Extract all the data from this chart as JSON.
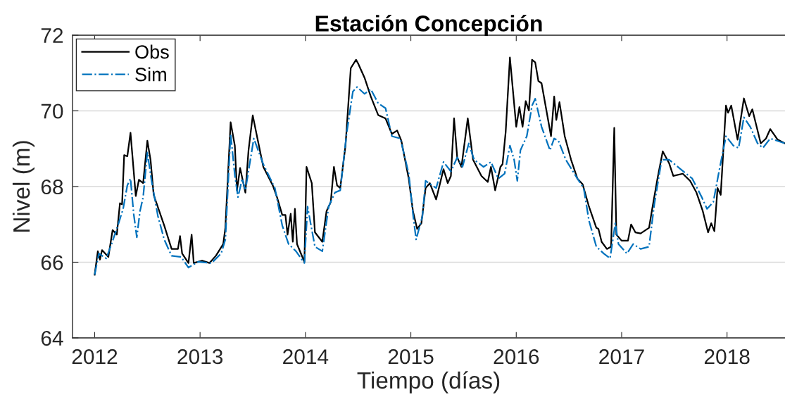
{
  "chart_data": {
    "type": "line",
    "title": "Estación Concepción",
    "xlabel": "Tiempo (días)",
    "ylabel": "Nivel (m)",
    "xlim": [
      2011.79,
      2018.55
    ],
    "ylim": [
      64,
      72
    ],
    "xticks": [
      2012,
      2013,
      2014,
      2015,
      2016,
      2017,
      2018
    ],
    "yticks": [
      64,
      66,
      68,
      70,
      72
    ],
    "grid": "y",
    "legend": "top left",
    "marker": "none",
    "series": [
      {
        "name": "Obs",
        "color": "#000000",
        "line_style": "solid",
        "x": [
          2012.0,
          2012.03,
          2012.05,
          2012.07,
          2012.13,
          2012.17,
          2012.21,
          2012.24,
          2012.26,
          2012.28,
          2012.31,
          2012.34,
          2012.39,
          2012.42,
          2012.46,
          2012.5,
          2012.53,
          2012.56,
          2012.66,
          2012.73,
          2012.79,
          2012.81,
          2012.83,
          2012.89,
          2012.92,
          2012.94,
          2013.02,
          2013.09,
          2013.15,
          2013.22,
          2013.24,
          2013.29,
          2013.33,
          2013.35,
          2013.38,
          2013.43,
          2013.46,
          2013.5,
          2013.54,
          2013.6,
          2013.69,
          2013.73,
          2013.78,
          2013.81,
          2013.83,
          2013.86,
          2013.88,
          2013.9,
          2013.92,
          2013.99,
          2014.01,
          2014.06,
          2014.09,
          2014.16,
          2014.2,
          2014.24,
          2014.27,
          2014.3,
          2014.33,
          2014.38,
          2014.43,
          2014.48,
          2014.5,
          2014.56,
          2014.62,
          2014.69,
          2014.76,
          2014.82,
          2014.87,
          2014.91,
          2014.98,
          2015.02,
          2015.06,
          2015.1,
          2015.14,
          2015.18,
          2015.24,
          2015.31,
          2015.35,
          2015.38,
          2015.41,
          2015.44,
          2015.48,
          2015.54,
          2015.59,
          2015.67,
          2015.73,
          2015.76,
          2015.8,
          2015.85,
          2015.87,
          2015.9,
          2015.94,
          2016.0,
          2016.03,
          2016.06,
          2016.09,
          2016.12,
          2016.15,
          2016.18,
          2016.21,
          2016.24,
          2016.33,
          2016.36,
          2016.38,
          2016.41,
          2016.46,
          2016.52,
          2016.58,
          2016.63,
          2016.69,
          2016.76,
          2016.78,
          2016.81,
          2016.86,
          2016.9,
          2016.93,
          2016.95,
          2017.0,
          2017.06,
          2017.09,
          2017.13,
          2017.18,
          2017.26,
          2017.29,
          2017.34,
          2017.39,
          2017.45,
          2017.49,
          2017.58,
          2017.65,
          2017.71,
          2017.77,
          2017.82,
          2017.85,
          2017.88,
          2017.91,
          2017.94,
          2017.99,
          2018.01,
          2018.04,
          2018.1,
          2018.16,
          2018.21,
          2018.24,
          2018.32,
          2018.37,
          2018.41,
          2018.48,
          2018.55
        ],
        "values": [
          65.67,
          66.29,
          66.07,
          66.32,
          66.14,
          66.85,
          66.73,
          67.56,
          67.53,
          68.83,
          68.8,
          69.42,
          67.75,
          68.18,
          68.09,
          69.21,
          68.71,
          67.78,
          66.97,
          66.35,
          66.35,
          66.69,
          66.23,
          65.98,
          66.73,
          65.98,
          66.04,
          65.98,
          66.17,
          66.48,
          66.91,
          69.7,
          69.08,
          67.9,
          68.49,
          67.84,
          68.96,
          69.88,
          69.33,
          68.52,
          68.03,
          67.72,
          67.25,
          67.25,
          66.73,
          67.28,
          66.54,
          67.41,
          66.48,
          66.01,
          68.52,
          68.09,
          66.79,
          66.54,
          67.35,
          67.59,
          68.52,
          68.03,
          67.96,
          69.08,
          71.13,
          71.35,
          71.25,
          70.88,
          70.38,
          69.89,
          69.8,
          69.39,
          69.48,
          69.21,
          68.21,
          67.35,
          66.88,
          67.03,
          67.96,
          68.09,
          67.66,
          68.46,
          68.09,
          68.28,
          69.8,
          68.77,
          68.52,
          69.8,
          68.71,
          68.28,
          68.12,
          68.52,
          67.9,
          68.52,
          68.59,
          69.45,
          71.41,
          69.58,
          70.1,
          69.58,
          70.26,
          70.01,
          71.35,
          71.28,
          70.79,
          70.73,
          69.33,
          70.38,
          69.76,
          70.23,
          69.33,
          68.71,
          68.21,
          68.06,
          67.47,
          66.91,
          66.88,
          66.54,
          66.35,
          66.41,
          69.55,
          66.73,
          66.57,
          66.57,
          67.0,
          66.79,
          66.76,
          66.91,
          67.41,
          68.21,
          68.93,
          68.62,
          68.28,
          68.34,
          68.15,
          67.84,
          67.35,
          66.79,
          67.03,
          66.82,
          67.96,
          67.78,
          70.14,
          69.95,
          70.14,
          69.24,
          70.33,
          69.86,
          70.04,
          69.14,
          69.27,
          69.52,
          69.24,
          69.14
        ]
      },
      {
        "name": "Sim",
        "color": "#0072bd",
        "line_style": "dashdot",
        "x": [
          2012.0,
          2012.04,
          2012.11,
          2012.16,
          2012.22,
          2012.27,
          2012.31,
          2012.34,
          2012.37,
          2012.4,
          2012.43,
          2012.46,
          2012.5,
          2012.54,
          2012.6,
          2012.66,
          2012.73,
          2012.82,
          2012.89,
          2012.98,
          2013.11,
          2013.2,
          2013.24,
          2013.29,
          2013.33,
          2013.36,
          2013.4,
          2013.43,
          2013.51,
          2013.6,
          2013.71,
          2013.78,
          2013.84,
          2013.91,
          2013.99,
          2014.02,
          2014.09,
          2014.16,
          2014.22,
          2014.28,
          2014.33,
          2014.39,
          2014.45,
          2014.49,
          2014.56,
          2014.62,
          2014.69,
          2014.76,
          2014.82,
          2014.9,
          2014.98,
          2015.02,
          2015.05,
          2015.11,
          2015.14,
          2015.24,
          2015.31,
          2015.38,
          2015.44,
          2015.49,
          2015.55,
          2015.6,
          2015.69,
          2015.76,
          2015.83,
          2015.89,
          2015.94,
          2015.98,
          2016.01,
          2016.04,
          2016.1,
          2016.15,
          2016.18,
          2016.24,
          2016.32,
          2016.36,
          2016.4,
          2016.47,
          2016.58,
          2016.64,
          2016.69,
          2016.76,
          2016.83,
          2016.89,
          2016.94,
          2016.97,
          2017.05,
          2017.11,
          2017.18,
          2017.26,
          2017.31,
          2017.38,
          2017.45,
          2017.56,
          2017.67,
          2017.76,
          2017.81,
          2017.87,
          2017.92,
          2017.99,
          2018.06,
          2018.11,
          2018.16,
          2018.22,
          2018.29,
          2018.34,
          2018.41,
          2018.55
        ],
        "values": [
          65.67,
          66.23,
          66.1,
          66.48,
          66.97,
          67.41,
          68.03,
          68.21,
          67.28,
          66.66,
          67.35,
          67.72,
          68.9,
          68.15,
          67.22,
          66.6,
          66.17,
          66.14,
          65.86,
          66.01,
          65.98,
          66.23,
          66.6,
          69.39,
          68.3,
          67.72,
          68.21,
          67.9,
          69.27,
          68.59,
          67.96,
          66.97,
          66.48,
          66.29,
          65.98,
          67.47,
          66.41,
          66.29,
          67.47,
          67.84,
          67.9,
          69.39,
          70.51,
          70.63,
          70.45,
          70.57,
          70.2,
          70.07,
          69.33,
          69.27,
          68.34,
          67.28,
          66.6,
          67.22,
          68.15,
          67.96,
          68.65,
          68.4,
          68.77,
          68.52,
          69.14,
          68.71,
          68.52,
          68.65,
          68.21,
          68.34,
          69.08,
          68.71,
          68.15,
          68.96,
          69.33,
          70.14,
          70.32,
          69.58,
          68.96,
          69.27,
          69.21,
          68.71,
          68.21,
          67.96,
          67.1,
          66.41,
          66.23,
          66.1,
          67.03,
          66.48,
          66.23,
          66.48,
          66.35,
          66.41,
          67.53,
          68.71,
          68.71,
          68.46,
          68.21,
          67.72,
          67.41,
          67.59,
          68.34,
          69.33,
          69.08,
          69.02,
          69.83,
          69.58,
          69.14,
          69.02,
          69.27,
          69.14
        ]
      }
    ]
  }
}
